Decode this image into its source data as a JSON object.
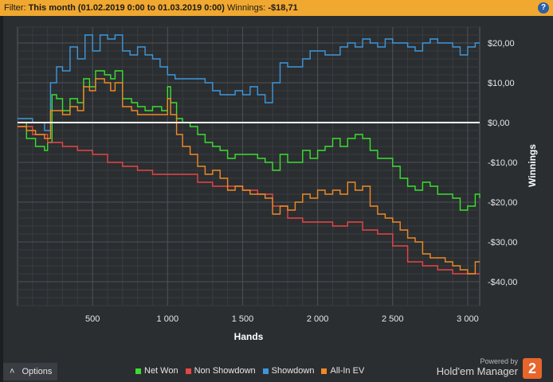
{
  "filter": {
    "prefix": "Filter:",
    "period": "This month (01.02.2019 0:00 to 01.03.2019 0:00)",
    "winnings_label": "Winnings:",
    "winnings_value": "-$18,71",
    "help_icon": "help-icon"
  },
  "options_label": "Options",
  "options_icon": "chevron-up-icon",
  "powered_by": "Powered by",
  "brand_name": "Hold'em Manager",
  "brand_badge": "2",
  "colors": {
    "background": "#2b2e31",
    "grid": "#41454a",
    "zero_line": "#ffffff",
    "filter_bar": "#f0a830"
  },
  "chart_data": {
    "type": "line",
    "xlabel": "Hands",
    "ylabel": "Winnings",
    "xlim": [
      0,
      3080
    ],
    "ylim": [
      -46,
      24
    ],
    "xticks": [
      500,
      1000,
      1500,
      2000,
      2500,
      3000
    ],
    "xtick_labels": [
      "500",
      "1 000",
      "1 500",
      "2 000",
      "2 500",
      "3 000"
    ],
    "yticks": [
      20,
      10,
      0,
      -10,
      -20,
      -30,
      -40
    ],
    "ytick_labels": [
      "$20,00",
      "$10,00",
      "$0,00",
      "-$10,00",
      "-$20,00",
      "-$30,00",
      "-$40,00"
    ],
    "grid": true,
    "legend_position": "bottom",
    "series": [
      {
        "name": "Net Won",
        "color": "#3adf2f",
        "x": [
          0,
          60,
          120,
          180,
          200,
          230,
          260,
          300,
          350,
          400,
          440,
          480,
          520,
          580,
          620,
          650,
          700,
          760,
          800,
          850,
          900,
          960,
          1000,
          1020,
          1060,
          1100,
          1150,
          1200,
          1250,
          1300,
          1350,
          1400,
          1450,
          1500,
          1550,
          1600,
          1650,
          1700,
          1750,
          1800,
          1850,
          1900,
          1950,
          2000,
          2050,
          2100,
          2150,
          2200,
          2250,
          2300,
          2350,
          2400,
          2450,
          2500,
          2550,
          2600,
          2650,
          2700,
          2750,
          2800,
          2850,
          2900,
          2950,
          3000,
          3050,
          3080
        ],
        "y": [
          0,
          -4,
          -6,
          -7,
          -5,
          7,
          6,
          3,
          6,
          5,
          11,
          9,
          13,
          12,
          11,
          13,
          6,
          5,
          4,
          3,
          4,
          3,
          9,
          5,
          1,
          0,
          -1,
          -3,
          -5,
          -6,
          -7,
          -9,
          -8,
          -8,
          -8,
          -9,
          -10,
          -12,
          -8,
          -10,
          -10,
          -7,
          -9,
          -7,
          -6,
          -4,
          -6,
          -4,
          -3,
          -4,
          -7,
          -9,
          -9,
          -11,
          -14,
          -16,
          -17,
          -15,
          -16,
          -18,
          -18,
          -19,
          -22,
          -21,
          -18,
          -19
        ]
      },
      {
        "name": "Non Showdown",
        "color": "#e84545",
        "x": [
          0,
          100,
          200,
          300,
          400,
          500,
          600,
          700,
          800,
          900,
          1000,
          1100,
          1200,
          1300,
          1400,
          1500,
          1600,
          1700,
          1800,
          1900,
          2000,
          2100,
          2200,
          2300,
          2400,
          2500,
          2600,
          2700,
          2800,
          2900,
          3000,
          3080
        ],
        "y": [
          -1,
          -3,
          -5,
          -6,
          -7,
          -8,
          -10,
          -11,
          -12,
          -13,
          -13,
          -13,
          -15,
          -16,
          -16,
          -17,
          -18,
          -21,
          -24,
          -25,
          -25,
          -26,
          -25,
          -27,
          -28,
          -31,
          -35,
          -36,
          -37,
          -38,
          -38,
          -38
        ]
      },
      {
        "name": "Showdown",
        "color": "#3d97dc",
        "x": [
          0,
          100,
          180,
          220,
          260,
          300,
          350,
          400,
          450,
          500,
          550,
          600,
          650,
          700,
          750,
          800,
          850,
          900,
          950,
          1000,
          1050,
          1100,
          1150,
          1200,
          1250,
          1300,
          1350,
          1400,
          1450,
          1500,
          1550,
          1600,
          1650,
          1700,
          1750,
          1800,
          1850,
          1900,
          1950,
          2000,
          2050,
          2100,
          2150,
          2200,
          2250,
          2300,
          2350,
          2400,
          2450,
          2500,
          2550,
          2600,
          2650,
          2700,
          2750,
          2800,
          2850,
          2900,
          2950,
          3000,
          3050,
          3080
        ],
        "y": [
          1,
          0,
          -2,
          10,
          14,
          13,
          19,
          16,
          22,
          18,
          22,
          21,
          22,
          18,
          17,
          19,
          17,
          16,
          14,
          12,
          11,
          11,
          11,
          11,
          10,
          8,
          7,
          7,
          8,
          7,
          9,
          7,
          5,
          10,
          15,
          14,
          14,
          16,
          18,
          18,
          17,
          17,
          19,
          20,
          19,
          21,
          20,
          19,
          21,
          20,
          20,
          19,
          18,
          20,
          21,
          20,
          20,
          19,
          17,
          19,
          20,
          20
        ]
      },
      {
        "name": "All-In EV",
        "color": "#f08a24",
        "x": [
          0,
          60,
          120,
          180,
          220,
          260,
          300,
          350,
          400,
          440,
          480,
          520,
          580,
          620,
          650,
          700,
          760,
          800,
          850,
          900,
          960,
          1000,
          1020,
          1060,
          1100,
          1150,
          1200,
          1250,
          1300,
          1350,
          1400,
          1450,
          1500,
          1550,
          1600,
          1650,
          1700,
          1750,
          1800,
          1850,
          1900,
          1950,
          2000,
          2050,
          2100,
          2150,
          2200,
          2250,
          2300,
          2350,
          2400,
          2450,
          2500,
          2550,
          2600,
          2650,
          2700,
          2750,
          2800,
          2850,
          2900,
          2950,
          3000,
          3050,
          3080
        ],
        "y": [
          -1,
          -2,
          -3,
          -4,
          3,
          3,
          2,
          4,
          3,
          9,
          8,
          11,
          10,
          8,
          10,
          4,
          3,
          2,
          2,
          2,
          2,
          6,
          2,
          -3,
          -6,
          -8,
          -11,
          -13,
          -12,
          -14,
          -17,
          -16,
          -17,
          -18,
          -18,
          -19,
          -23,
          -21,
          -22,
          -20,
          -18,
          -19,
          -17,
          -18,
          -17,
          -18,
          -15,
          -17,
          -16,
          -21,
          -23,
          -24,
          -25,
          -27,
          -29,
          -30,
          -33,
          -34,
          -34,
          -35,
          -36,
          -37,
          -38,
          -35,
          -35
        ]
      }
    ]
  }
}
